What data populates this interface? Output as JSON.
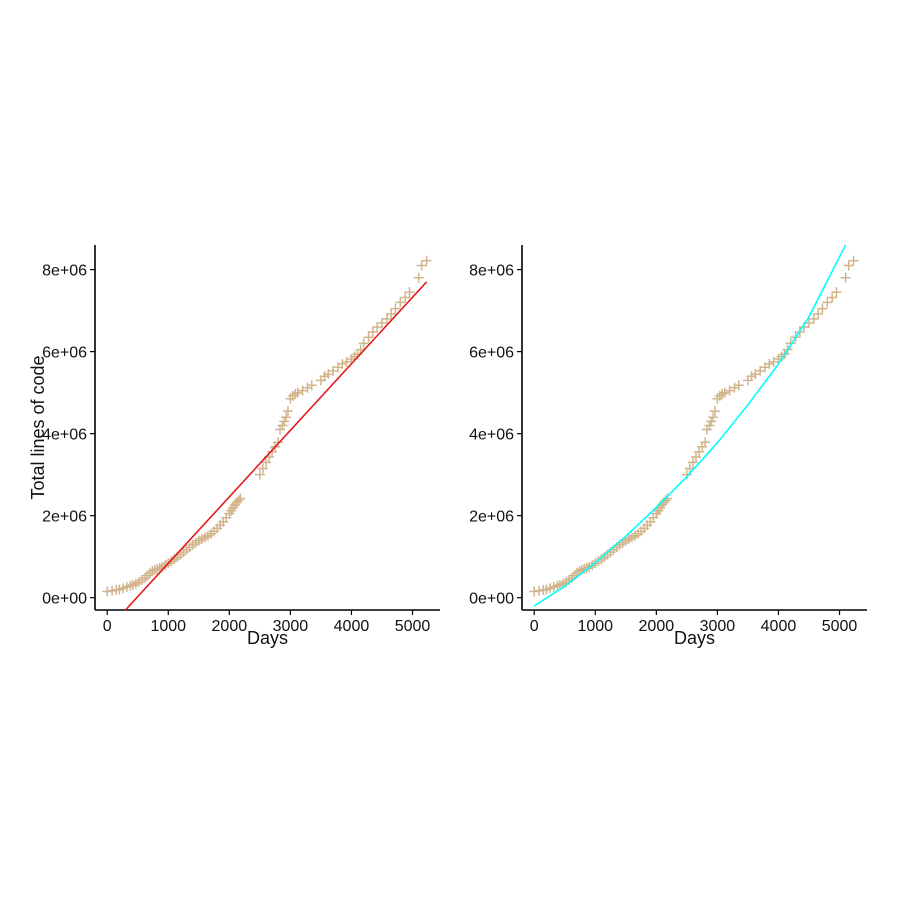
{
  "chart_data": [
    {
      "type": "scatter",
      "xlabel": "Days",
      "ylabel": "Total lines of code",
      "xlim": [
        -200,
        5450
      ],
      "ylim": [
        -300000,
        8600000
      ],
      "x_ticks": [
        0,
        1000,
        2000,
        3000,
        4000,
        5000
      ],
      "y_ticks": [
        0,
        2000000,
        4000000,
        6000000,
        8000000
      ],
      "x_tick_labels": [
        "0",
        "1000",
        "2000",
        "3000",
        "4000",
        "5000"
      ],
      "y_tick_labels": [
        "0e+00",
        "2e+06",
        "4e+06",
        "6e+06",
        "8e+06"
      ],
      "grid": false,
      "series": [
        {
          "kind": "points",
          "marker": "+",
          "color": "#d2b48c",
          "x": [
            0,
            80,
            150,
            200,
            260,
            320,
            380,
            420,
            470,
            520,
            570,
            620,
            660,
            700,
            740,
            780,
            820,
            860,
            900,
            950,
            1000,
            1050,
            1100,
            1150,
            1200,
            1250,
            1300,
            1350,
            1400,
            1450,
            1500,
            1550,
            1600,
            1650,
            1700,
            1750,
            1800,
            1850,
            1900,
            1950,
            2000,
            2030,
            2060,
            2090,
            2120,
            2150,
            2180,
            2500,
            2550,
            2600,
            2650,
            2700,
            2750,
            2800,
            2830,
            2870,
            2900,
            2930,
            2960,
            3000,
            3040,
            3080,
            3120,
            3200,
            3280,
            3350,
            3500,
            3560,
            3620,
            3700,
            3780,
            3850,
            3920,
            4000,
            4050,
            4100,
            4150,
            4200,
            4280,
            4350,
            4420,
            4500,
            4580,
            4650,
            4720,
            4800,
            4880,
            4950,
            5100,
            5150,
            5230
          ],
          "y": [
            150000,
            170000,
            190000,
            200000,
            230000,
            260000,
            290000,
            310000,
            340000,
            380000,
            430000,
            480000,
            540000,
            600000,
            650000,
            680000,
            700000,
            720000,
            750000,
            790000,
            840000,
            890000,
            940000,
            990000,
            1050000,
            1110000,
            1170000,
            1230000,
            1290000,
            1340000,
            1390000,
            1430000,
            1470000,
            1510000,
            1560000,
            1620000,
            1690000,
            1770000,
            1850000,
            1950000,
            2050000,
            2120000,
            2190000,
            2260000,
            2320000,
            2370000,
            2420000,
            3000000,
            3150000,
            3300000,
            3430000,
            3560000,
            3680000,
            3790000,
            4100000,
            4200000,
            4300000,
            4400000,
            4550000,
            4850000,
            4920000,
            4970000,
            5000000,
            5050000,
            5120000,
            5180000,
            5300000,
            5400000,
            5450000,
            5530000,
            5620000,
            5700000,
            5750000,
            5820000,
            5880000,
            5940000,
            6050000,
            6200000,
            6350000,
            6480000,
            6600000,
            6700000,
            6800000,
            6920000,
            7050000,
            7200000,
            7320000,
            7450000,
            7800000,
            8100000,
            8220000
          ]
        },
        {
          "kind": "line",
          "color": "#e41a1c",
          "x": [
            300,
            5230
          ],
          "y": [
            -300000,
            7700000
          ]
        }
      ]
    },
    {
      "type": "scatter",
      "xlabel": "Days",
      "ylabel": "",
      "xlim": [
        -200,
        5450
      ],
      "ylim": [
        -300000,
        8600000
      ],
      "x_ticks": [
        0,
        1000,
        2000,
        3000,
        4000,
        5000
      ],
      "y_ticks": [
        0,
        2000000,
        4000000,
        6000000,
        8000000
      ],
      "x_tick_labels": [
        "0",
        "1000",
        "2000",
        "3000",
        "4000",
        "5000"
      ],
      "y_tick_labels": [
        "0e+00",
        "2e+06",
        "4e+06",
        "6e+06",
        "8e+06"
      ],
      "grid": false,
      "series": [
        {
          "kind": "points",
          "marker": "+",
          "color": "#d2b48c",
          "x": [
            0,
            80,
            150,
            200,
            260,
            320,
            380,
            420,
            470,
            520,
            570,
            620,
            660,
            700,
            740,
            780,
            820,
            860,
            900,
            950,
            1000,
            1050,
            1100,
            1150,
            1200,
            1250,
            1300,
            1350,
            1400,
            1450,
            1500,
            1550,
            1600,
            1650,
            1700,
            1750,
            1800,
            1850,
            1900,
            1950,
            2000,
            2030,
            2060,
            2090,
            2120,
            2150,
            2180,
            2500,
            2550,
            2600,
            2650,
            2700,
            2750,
            2800,
            2830,
            2870,
            2900,
            2930,
            2960,
            3000,
            3040,
            3080,
            3120,
            3200,
            3280,
            3350,
            3500,
            3560,
            3620,
            3700,
            3780,
            3850,
            3920,
            4000,
            4050,
            4100,
            4150,
            4200,
            4280,
            4350,
            4420,
            4500,
            4580,
            4650,
            4720,
            4800,
            4880,
            4950,
            5100,
            5150,
            5230
          ],
          "y": [
            150000,
            170000,
            190000,
            200000,
            230000,
            260000,
            290000,
            310000,
            340000,
            380000,
            430000,
            480000,
            540000,
            600000,
            650000,
            680000,
            700000,
            720000,
            750000,
            790000,
            840000,
            890000,
            940000,
            990000,
            1050000,
            1110000,
            1170000,
            1230000,
            1290000,
            1340000,
            1390000,
            1430000,
            1470000,
            1510000,
            1560000,
            1620000,
            1690000,
            1770000,
            1850000,
            1950000,
            2050000,
            2120000,
            2190000,
            2260000,
            2320000,
            2370000,
            2420000,
            3000000,
            3150000,
            3300000,
            3430000,
            3560000,
            3680000,
            3790000,
            4100000,
            4200000,
            4300000,
            4400000,
            4550000,
            4850000,
            4920000,
            4970000,
            5000000,
            5050000,
            5120000,
            5180000,
            5300000,
            5400000,
            5450000,
            5530000,
            5620000,
            5700000,
            5750000,
            5820000,
            5880000,
            5940000,
            6050000,
            6200000,
            6350000,
            6480000,
            6600000,
            6700000,
            6800000,
            6920000,
            7050000,
            7200000,
            7320000,
            7450000,
            7800000,
            8100000,
            8220000
          ]
        },
        {
          "kind": "line",
          "color": "#00ffff",
          "x": [
            0,
            500,
            1000,
            1500,
            2000,
            2500,
            3000,
            3500,
            4000,
            4500,
            5100
          ],
          "y": [
            -200000,
            280000,
            850000,
            1500000,
            2200000,
            2950000,
            3780000,
            4700000,
            5700000,
            6850000,
            8600000
          ]
        }
      ]
    }
  ]
}
